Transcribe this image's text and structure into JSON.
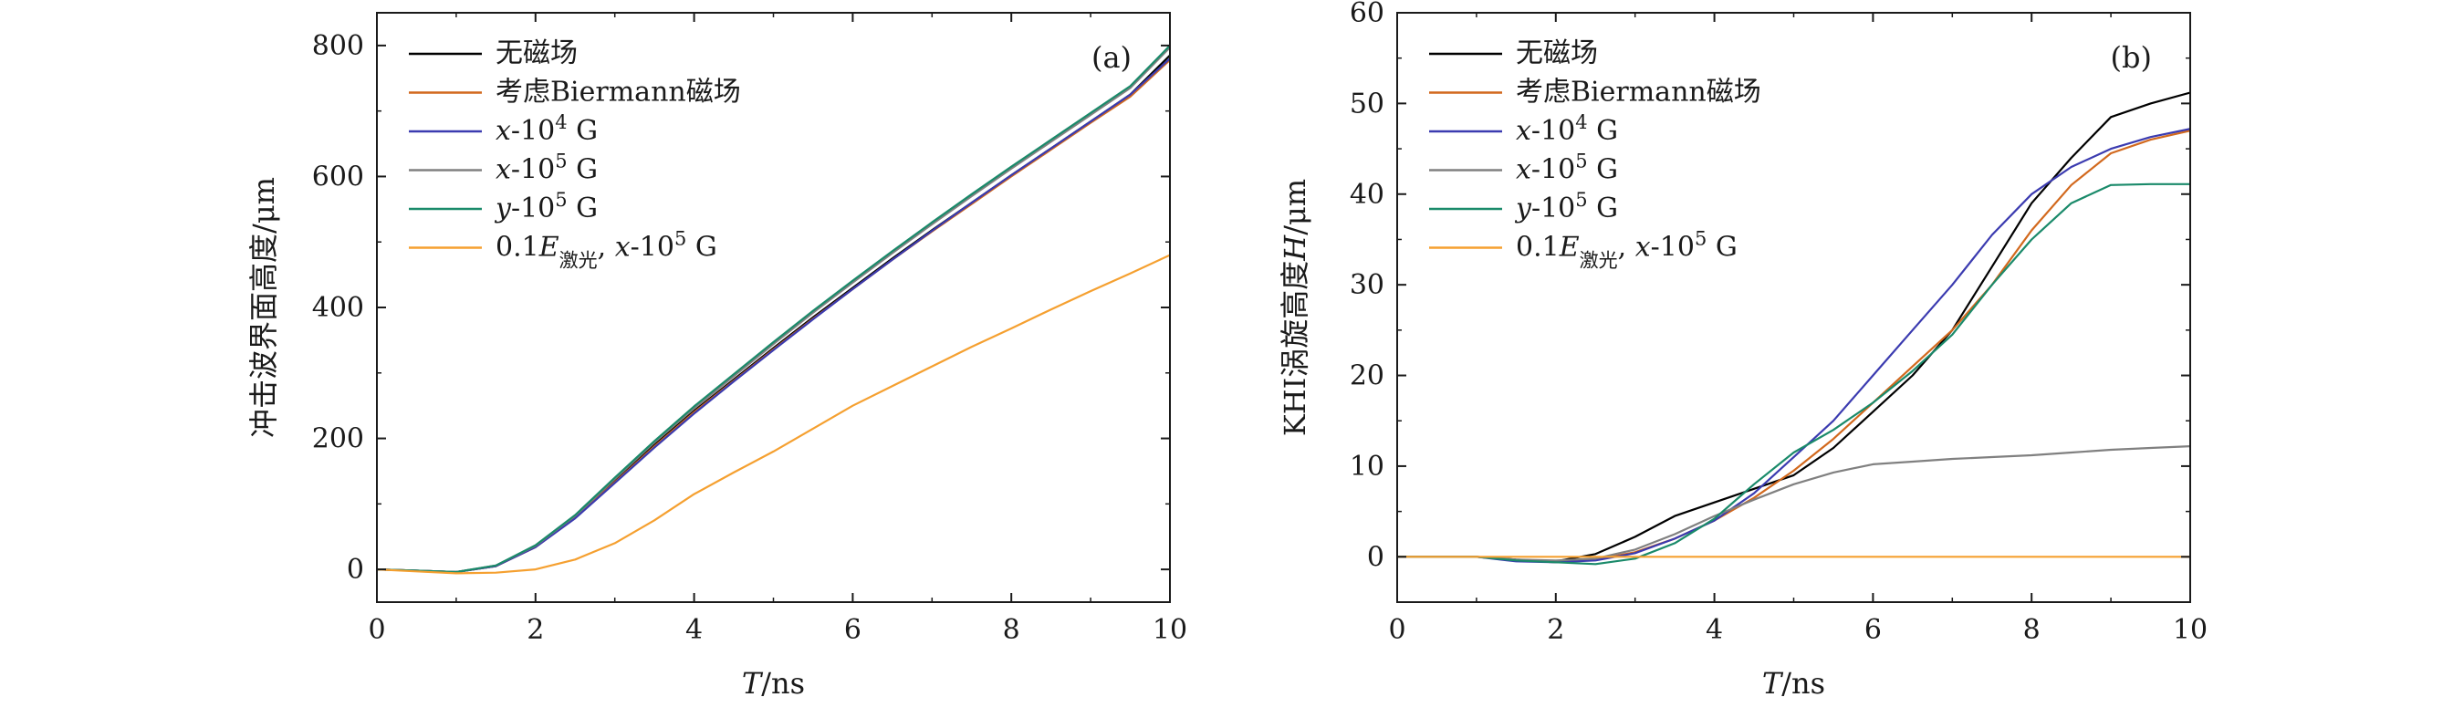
{
  "chart_data": [
    {
      "type": "line",
      "panel_label": "(a)",
      "ylabel": "冲击波界面高度/μm",
      "xlabel_main": "T",
      "xlabel_unit": "/ns",
      "xlim": [
        0,
        10
      ],
      "ylim": [
        -50,
        850
      ],
      "xticks": [
        "0",
        "2",
        "4",
        "6",
        "8",
        "10"
      ],
      "yticks": [
        "0",
        "200",
        "400",
        "600",
        "800"
      ],
      "legend_position": "top-left",
      "series": [
        {
          "name": "无磁场",
          "color": "#000000",
          "x": [
            0,
            0.5,
            1,
            1.5,
            2,
            2.5,
            3,
            3.5,
            4,
            4.5,
            5,
            5.5,
            6,
            6.5,
            7,
            7.5,
            8,
            8.5,
            9,
            9.5,
            10
          ],
          "y": [
            0,
            -2,
            -4,
            5,
            35,
            80,
            135,
            190,
            242,
            290,
            338,
            385,
            430,
            475,
            518,
            560,
            602,
            643,
            684,
            725,
            785
          ]
        },
        {
          "name": "考虑Biermann磁场",
          "color": "#d2691e",
          "x": [
            0,
            0.5,
            1,
            1.5,
            2,
            2.5,
            3,
            3.5,
            4,
            4.5,
            5,
            5.5,
            6,
            6.5,
            7,
            7.5,
            8,
            8.5,
            9,
            9.5,
            10
          ],
          "y": [
            0,
            -2,
            -4,
            5,
            34,
            79,
            133,
            188,
            240,
            288,
            336,
            383,
            428,
            473,
            516,
            558,
            600,
            641,
            682,
            722,
            778
          ]
        },
        {
          "name": "x-10^4 G",
          "color": "#3b3bb0",
          "x": [
            0,
            0.5,
            1,
            1.5,
            2,
            2.5,
            3,
            3.5,
            4,
            4.5,
            5,
            5.5,
            6,
            6.5,
            7,
            7.5,
            8,
            8.5,
            9,
            9.5,
            10
          ],
          "y": [
            0,
            -2,
            -4,
            5,
            34,
            78,
            132,
            186,
            238,
            287,
            335,
            382,
            428,
            473,
            517,
            560,
            602,
            643,
            684,
            725,
            780
          ]
        },
        {
          "name": "x-10^5 G",
          "color": "#808080",
          "x": [
            0,
            0.5,
            1,
            1.5,
            2,
            2.5,
            3,
            3.5,
            4,
            4.5,
            5,
            5.5,
            6,
            6.5,
            7,
            7.5,
            8,
            8.5,
            9,
            9.5,
            10
          ],
          "y": [
            0,
            -2,
            -4,
            6,
            36,
            82,
            138,
            194,
            246,
            295,
            344,
            392,
            438,
            483,
            527,
            570,
            612,
            653,
            694,
            735,
            797
          ]
        },
        {
          "name": "y-10^5 G",
          "color": "#1a8a6a",
          "x": [
            0,
            0.5,
            1,
            1.5,
            2,
            2.5,
            3,
            3.5,
            4,
            4.5,
            5,
            5.5,
            6,
            6.5,
            7,
            7.5,
            8,
            8.5,
            9,
            9.5,
            10
          ],
          "y": [
            0,
            -2,
            -4,
            6,
            37,
            83,
            140,
            196,
            249,
            298,
            347,
            395,
            441,
            486,
            530,
            573,
            615,
            656,
            697,
            738,
            800
          ]
        },
        {
          "name": "0.1E_激光, x-10^5 G",
          "color": "#f5a030",
          "x": [
            0,
            0.5,
            1,
            1.5,
            2,
            2.5,
            3,
            3.5,
            4,
            4.5,
            5,
            5.5,
            6,
            6.5,
            7,
            7.5,
            8,
            8.5,
            9,
            9.5,
            10
          ],
          "y": [
            0,
            -3,
            -6,
            -5,
            0,
            15,
            40,
            75,
            115,
            148,
            180,
            215,
            250,
            280,
            310,
            340,
            368,
            397,
            425,
            452,
            480
          ]
        }
      ]
    },
    {
      "type": "line",
      "panel_label": "(b)",
      "ylabel_text": "KHI涡旋高度",
      "ylabel_var": "H",
      "ylabel_unit": "/μm",
      "xlabel_main": "T",
      "xlabel_unit": "/ns",
      "xlim": [
        0,
        10
      ],
      "ylim": [
        -5,
        60
      ],
      "xticks": [
        "0",
        "2",
        "4",
        "6",
        "8",
        "10"
      ],
      "yticks": [
        "0",
        "10",
        "20",
        "30",
        "40",
        "50",
        "60"
      ],
      "legend_position": "top-left",
      "series": [
        {
          "name": "无磁场",
          "color": "#000000",
          "x": [
            0,
            1,
            1.5,
            2,
            2.5,
            3,
            3.5,
            4,
            4.5,
            5,
            5.5,
            6,
            6.5,
            7,
            7.5,
            8,
            8.5,
            9,
            9.5,
            10
          ],
          "y": [
            0,
            0,
            -0.3,
            -0.5,
            0.3,
            2.2,
            4.5,
            6,
            7.5,
            9,
            12,
            16,
            20,
            25,
            32,
            39,
            44,
            48.5,
            50,
            51.2
          ]
        },
        {
          "name": "考虑Biermann磁场",
          "color": "#d2691e",
          "x": [
            0,
            1,
            1.5,
            2,
            2.5,
            3,
            3.5,
            4,
            4.5,
            5,
            5.5,
            6,
            6.5,
            7,
            7.5,
            8,
            8.5,
            9,
            9.5,
            10
          ],
          "y": [
            0,
            0,
            -0.4,
            -0.6,
            -0.3,
            0.5,
            2,
            4,
            6.5,
            9.5,
            13,
            17,
            21,
            25,
            30,
            36,
            41,
            44.5,
            46,
            47
          ]
        },
        {
          "name": "x-10^4 G",
          "color": "#3b3bb0",
          "x": [
            0,
            1,
            1.5,
            2,
            2.5,
            3,
            3.5,
            4,
            4.5,
            5,
            5.5,
            6,
            6.5,
            7,
            7.5,
            8,
            8.5,
            9,
            9.5,
            10
          ],
          "y": [
            0,
            0,
            -0.5,
            -0.6,
            -0.4,
            0.4,
            2,
            4,
            7,
            11,
            15,
            20,
            25,
            30,
            35.5,
            40,
            43,
            45,
            46.3,
            47.2
          ]
        },
        {
          "name": "x-10^5 G",
          "color": "#808080",
          "x": [
            0,
            1,
            1.5,
            2,
            2.5,
            3,
            3.5,
            4,
            4.5,
            5,
            5.5,
            6,
            6.5,
            7,
            7.5,
            8,
            8.5,
            9,
            9.5,
            10
          ],
          "y": [
            0,
            0,
            -0.3,
            -0.4,
            -0.2,
            0.8,
            2.5,
            4.5,
            6.3,
            8,
            9.3,
            10.2,
            10.5,
            10.8,
            11,
            11.2,
            11.5,
            11.8,
            12,
            12.2
          ]
        },
        {
          "name": "y-10^5 G",
          "color": "#1a8a6a",
          "x": [
            0,
            1,
            1.5,
            2,
            2.5,
            3,
            3.5,
            4,
            4.5,
            5,
            5.5,
            6,
            6.5,
            7,
            7.5,
            8,
            8.5,
            9,
            9.5,
            10
          ],
          "y": [
            0,
            0,
            -0.4,
            -0.6,
            -0.8,
            -0.2,
            1.5,
            4.2,
            8,
            11.5,
            14,
            17,
            20.5,
            24.5,
            30,
            35,
            39,
            41,
            41.1,
            41.1
          ]
        },
        {
          "name": "0.1E_激光, x-10^5 G",
          "color": "#f5a030",
          "x": [
            0,
            1,
            2,
            3,
            4,
            5,
            6,
            7,
            8,
            9,
            10
          ],
          "y": [
            0,
            0,
            0,
            0,
            0,
            0,
            0,
            0,
            0,
            0,
            0
          ]
        }
      ]
    }
  ],
  "legend_labels": [
    {
      "pre": "无磁场",
      "italic": "",
      "mid": "",
      "sup": "",
      "sub": "",
      "post": ""
    },
    {
      "pre": "考虑Biermann磁场",
      "italic": "",
      "mid": "",
      "sup": "",
      "sub": "",
      "post": ""
    },
    {
      "pre": "",
      "italic": "x",
      "mid": "-10",
      "sup": "4",
      "sub": "",
      "post": " G"
    },
    {
      "pre": "",
      "italic": "x",
      "mid": "-10",
      "sup": "5",
      "sub": "",
      "post": " G"
    },
    {
      "pre": "",
      "italic": "y",
      "mid": "-10",
      "sup": "5",
      "sub": "",
      "post": " G"
    },
    {
      "pre": "0.1",
      "italic": "E",
      "mid": "",
      "sup": "",
      "sub": "激光",
      "post": ", x-10^5 G"
    }
  ]
}
